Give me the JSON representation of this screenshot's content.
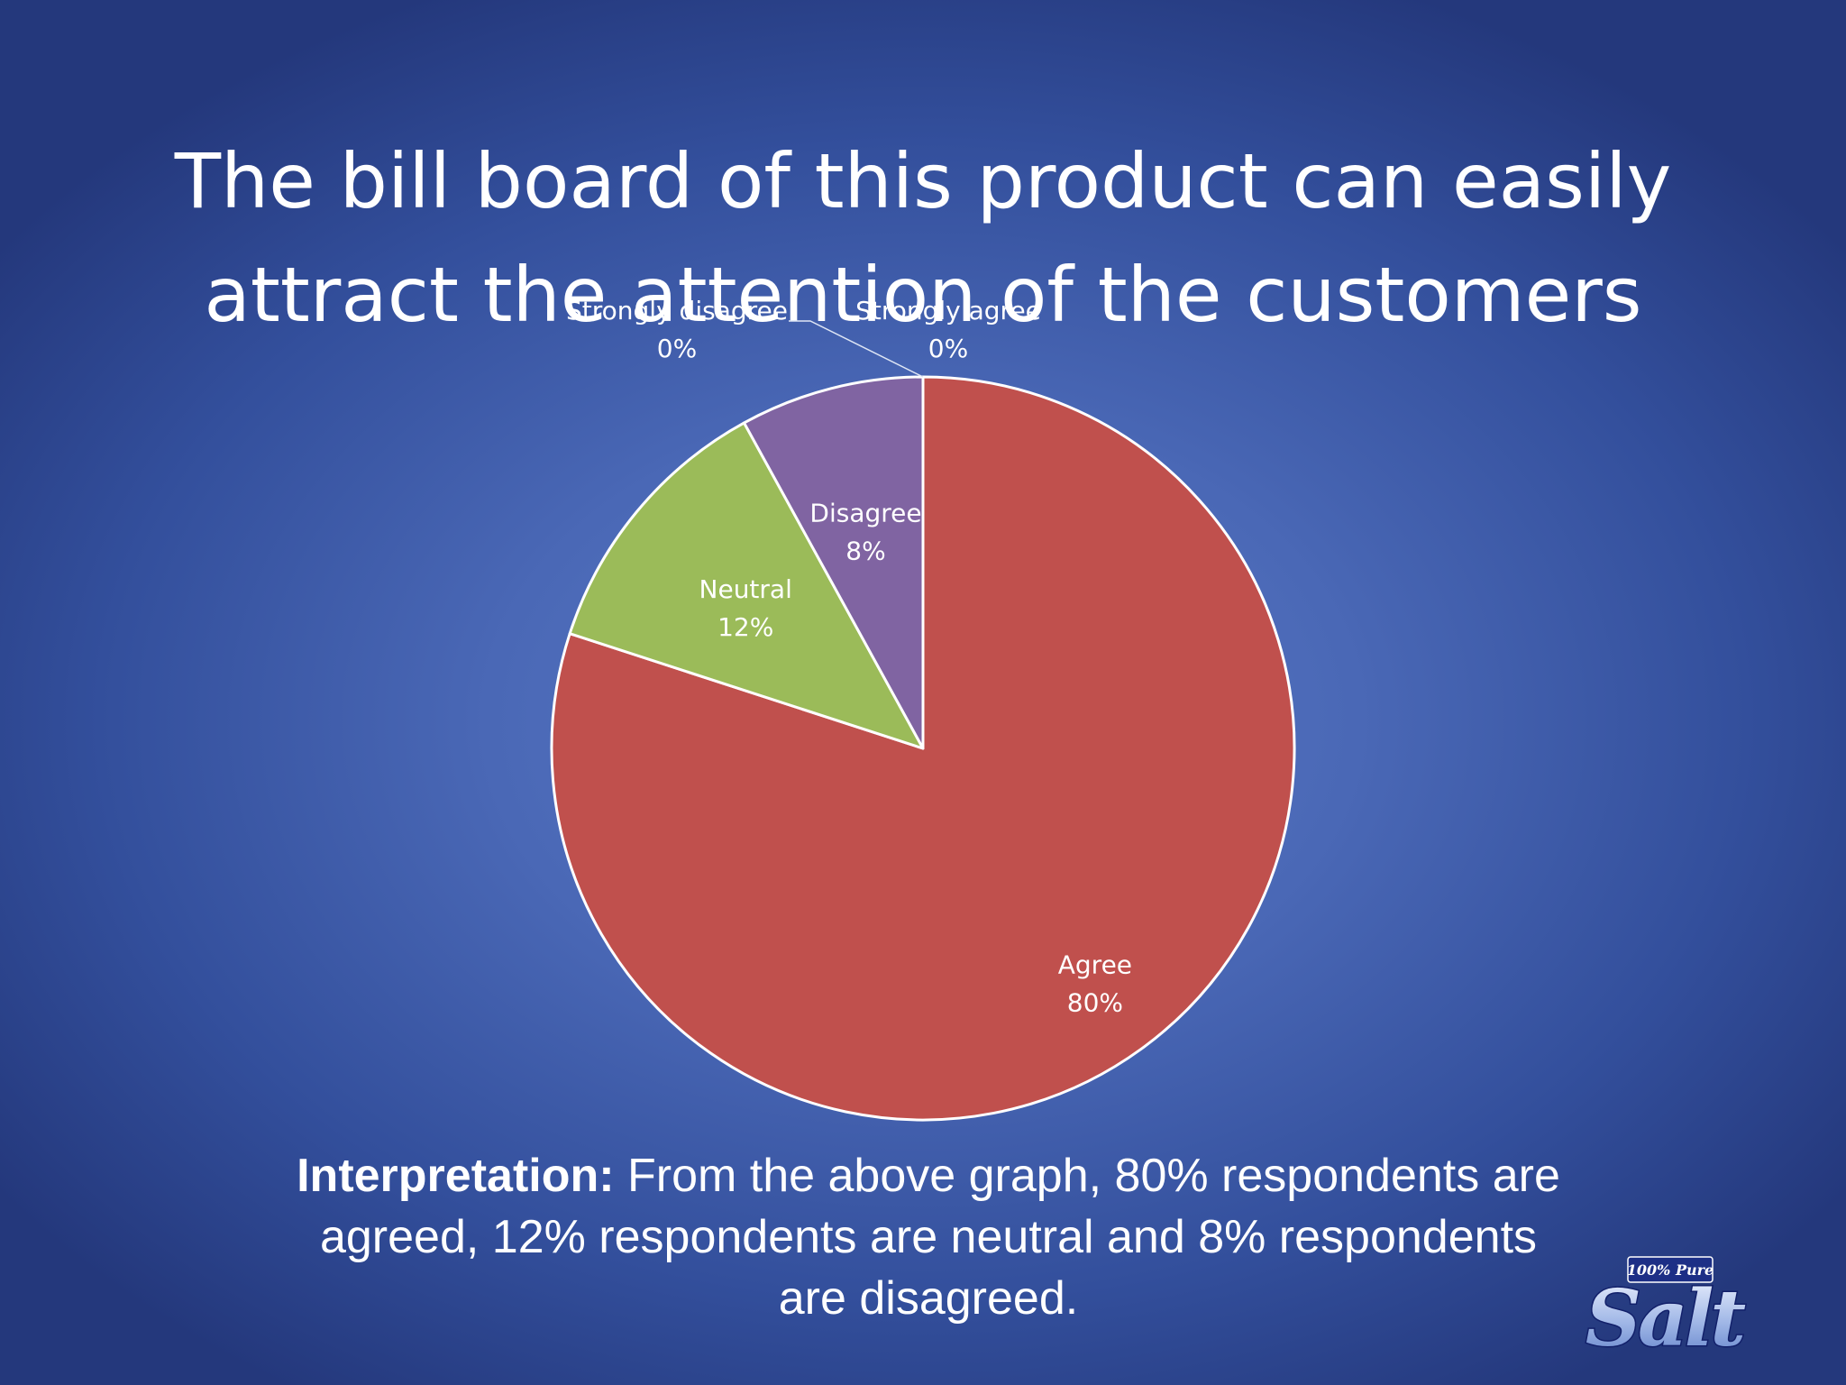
{
  "slide": {
    "title_lines": [
      "The bill board of this product can easily",
      "attract the attention of the customers"
    ],
    "interpretation": {
      "lead": "Interpretation:",
      "lines": [
        "From the above graph, 80% respondents are",
        "agreed, 12% respondents are neutral and 8% respondents",
        "are disagreed."
      ]
    },
    "logo": {
      "tagline": "100% Pure",
      "brand": "Salt"
    }
  },
  "chart_data": {
    "type": "pie",
    "title": "The bill board of this product can easily attract the attention of the customers",
    "categories": [
      "Strongly agree",
      "Agree",
      "Neutral",
      "Disagree",
      "Strongly disagree"
    ],
    "values": [
      0,
      80,
      12,
      8,
      0
    ],
    "value_labels": [
      "0%",
      "80%",
      "12%",
      "8%",
      "0%"
    ],
    "colors": [
      "#4f81bd",
      "#c0504d",
      "#9bbb59",
      "#8064a2",
      "#4bacc6"
    ],
    "start_angle_deg": 0,
    "direction": "clockwise",
    "legend": "none",
    "label_color": "#ffffff",
    "slice_border_color": "#ffffff"
  }
}
